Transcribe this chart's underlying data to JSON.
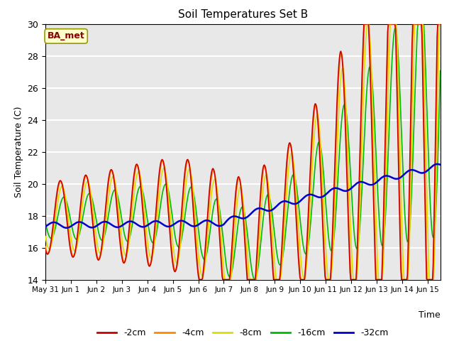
{
  "title": "Soil Temperatures Set B",
  "xlabel": "Time",
  "ylabel": "Soil Temperature (C)",
  "ylim": [
    14,
    30
  ],
  "annotation": "BA_met",
  "legend_labels": [
    "-2cm",
    "-4cm",
    "-8cm",
    "-16cm",
    "-32cm"
  ],
  "legend_colors": [
    "#cc0000",
    "#ff8800",
    "#dddd00",
    "#00bb00",
    "#0000cc"
  ],
  "background_color": "#e8e8e8",
  "x_tick_labels": [
    "May 31",
    "Jun 1",
    "Jun 2",
    "Jun 3",
    "Jun 4",
    "Jun 5",
    "Jun 6",
    "Jun 7",
    "Jun 8",
    "Jun 9",
    "Jun 10",
    "Jun 11",
    "Jun 12",
    "Jun 13",
    "Jun 14",
    "Jun 15"
  ]
}
